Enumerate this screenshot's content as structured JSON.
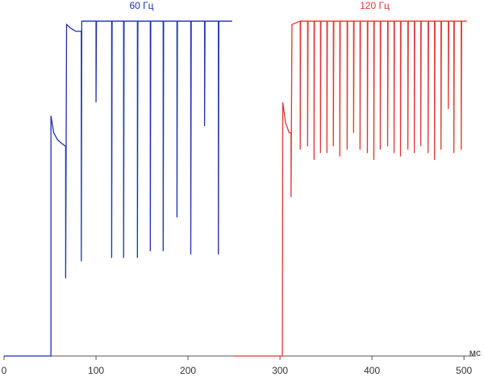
{
  "chart_data": {
    "type": "line",
    "xlabel": "мс",
    "xlim": [
      0,
      513
    ],
    "xticks": [
      0,
      100,
      200,
      300,
      400,
      500
    ],
    "ylim": [
      0,
      100
    ],
    "series": [
      {
        "name": "60 Гц",
        "color": "#1f2fb0",
        "x": [
          0,
          51,
          51,
          54,
          58,
          62,
          67,
          67,
          68,
          72,
          78,
          84,
          84,
          84.5,
          100,
          100,
          100.5,
          117,
          117,
          117.5,
          130,
          130,
          130.5,
          145,
          145,
          145.5,
          159,
          159,
          159.5,
          173,
          173,
          173.5,
          188,
          188,
          188.5,
          203,
          203,
          203.5,
          218,
          218,
          218.5,
          233,
          233,
          233.5,
          248
        ],
        "values": [
          0,
          0,
          71,
          66,
          64,
          63,
          62,
          23,
          98,
          97,
          96,
          96,
          28,
          99,
          99,
          75,
          99,
          99,
          29,
          99,
          99,
          29,
          99,
          99,
          29,
          99,
          99,
          31,
          99,
          99,
          31,
          99,
          99,
          41,
          99,
          99,
          30,
          99,
          99,
          68,
          99,
          99,
          30,
          99,
          99
        ]
      },
      {
        "name": "120 Гц",
        "color": "#e03535",
        "x": [
          250,
          302.6,
          303,
          306,
          310,
          312,
          312,
          313,
          322,
          322,
          322.5,
          330,
          330,
          330.5,
          337,
          337,
          337.5,
          344,
          344,
          344.5,
          351,
          351,
          351.5,
          358,
          358,
          358.5,
          365,
          365,
          365.5,
          373,
          373,
          373.5,
          380,
          380,
          380.5,
          387,
          387,
          387.5,
          395,
          395,
          395.5,
          402,
          402,
          402.5,
          409,
          409,
          409.5,
          417,
          417,
          417.5,
          424,
          424,
          424.5,
          431,
          431,
          431.5,
          439,
          439,
          439.5,
          446,
          446,
          446.5,
          453,
          453,
          453.5,
          461,
          461,
          461.5,
          468,
          468,
          468.5,
          475,
          475,
          475.5,
          483,
          483,
          483.5,
          489,
          489,
          489.5,
          497,
          497,
          497.5,
          503
        ],
        "values": [
          0,
          0,
          75,
          69,
          66,
          66,
          47,
          98,
          99,
          61,
          99,
          99,
          62,
          99,
          99,
          58,
          99,
          99,
          60,
          99,
          99,
          60,
          99,
          99,
          62,
          99,
          99,
          59,
          99,
          99,
          61,
          99,
          99,
          66,
          99,
          99,
          61,
          99,
          99,
          60,
          99,
          99,
          58,
          99,
          99,
          61,
          99,
          99,
          62,
          99,
          99,
          60,
          99,
          99,
          59,
          99,
          99,
          61,
          99,
          99,
          60,
          99,
          99,
          62,
          99,
          99,
          60,
          99,
          99,
          58,
          99,
          99,
          61,
          99,
          99,
          73,
          99,
          99,
          60,
          99,
          99,
          61,
          99,
          99
        ]
      }
    ]
  }
}
